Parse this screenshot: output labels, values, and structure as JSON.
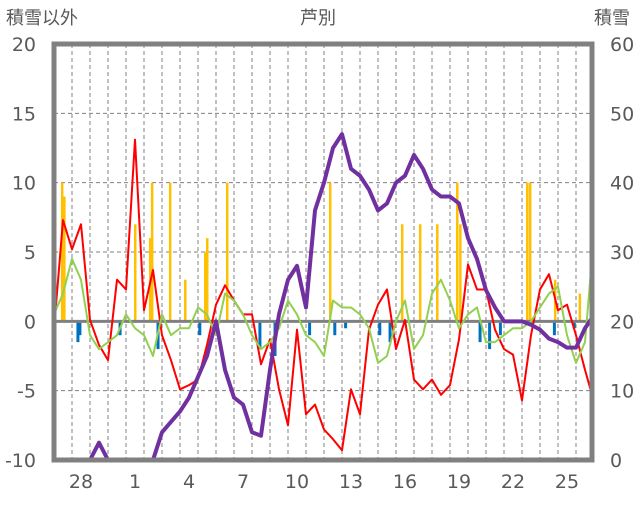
{
  "chart_data": {
    "type": "line",
    "title": "芦別",
    "ylabel_left": "積雪以外",
    "ylabel_right": "積雪",
    "ylim_left": [
      -10,
      20
    ],
    "ylim_right": [
      0,
      60
    ],
    "yticks_left": [
      "20",
      "15",
      "10",
      "5",
      "0",
      "-5",
      "-10"
    ],
    "yticks_right": [
      "60",
      "50",
      "40",
      "30",
      "20",
      "10",
      "0"
    ],
    "xlim_days": [
      0,
      29.9
    ],
    "x_tick_labels": [
      {
        "day": 1.5,
        "label": "28"
      },
      {
        "day": 4.5,
        "label": "1"
      },
      {
        "day": 7.5,
        "label": "4"
      },
      {
        "day": 10.5,
        "label": "7"
      },
      {
        "day": 13.5,
        "label": "10"
      },
      {
        "day": 16.5,
        "label": "13"
      },
      {
        "day": 19.5,
        "label": "16"
      },
      {
        "day": 22.5,
        "label": "19"
      },
      {
        "day": 25.5,
        "label": "22"
      },
      {
        "day": 28.5,
        "label": "25"
      }
    ],
    "grid": true,
    "x_step": 0.5,
    "series": [
      {
        "name": "red",
        "axis": "left",
        "color": "#ff0000",
        "values": [
          -0.6,
          7.3,
          5.2,
          7,
          0.1,
          -1.7,
          -2.8,
          3,
          2.3,
          13.1,
          0.8,
          3.7,
          -1,
          -2.8,
          -4.9,
          -4.6,
          -4.2,
          -1.7,
          1.2,
          2.6,
          1.5,
          0.5,
          0.5,
          -3.1,
          -1.3,
          -4.9,
          -7.5,
          -0.6,
          -6.7,
          -6,
          -7.8,
          -8.5,
          -9.3,
          -4.9,
          -6.7,
          -0.6,
          1.2,
          2.3,
          -2,
          0.1,
          -4.2,
          -4.9,
          -4.2,
          -5.3,
          -4.6,
          -1.3,
          4.1,
          2.3,
          2.3,
          -0.6,
          -2,
          -2.4,
          -5.7,
          -1,
          2.3,
          3.4,
          0.8,
          1.2,
          -1,
          -3.5,
          -5.3
        ]
      },
      {
        "name": "green",
        "axis": "left",
        "color": "#92d050",
        "values": [
          0.5,
          2,
          4.5,
          3,
          -1,
          -2,
          -1.5,
          -1,
          0.5,
          -0.5,
          -1,
          -2.5,
          0.5,
          -1,
          -0.5,
          -0.5,
          1,
          0.5,
          -1,
          2,
          1.5,
          0.5,
          -1,
          -2,
          -1.5,
          -0.5,
          1.5,
          0.5,
          -1,
          -1.5,
          -2.5,
          1.5,
          1,
          1,
          0.5,
          -0.5,
          -3,
          -2.5,
          0,
          1.5,
          -2,
          -1,
          2,
          3,
          1.5,
          -0.5,
          0.5,
          1,
          -1.5,
          -1.5,
          -1,
          -0.5,
          -0.5,
          0,
          1,
          2,
          2.5,
          -1,
          -3,
          -1.5,
          4.5
        ]
      },
      {
        "name": "snow-depth",
        "axis": "right",
        "color": "#7030a0",
        "values": [
          0,
          0,
          0,
          0,
          0,
          2.5,
          0,
          0,
          0,
          0,
          0,
          0,
          4,
          5.5,
          7,
          9,
          12,
          15,
          20,
          13,
          9,
          8,
          4,
          3.5,
          13,
          21,
          26,
          28,
          22,
          36,
          40,
          45,
          47,
          42,
          41,
          39,
          36,
          37,
          40,
          41,
          44,
          42,
          39,
          38,
          38,
          37,
          32,
          29,
          24.5,
          22,
          20,
          20,
          20,
          19.5,
          18.8,
          17.5,
          17,
          16.2,
          16.2,
          19,
          20.5
        ]
      }
    ],
    "bars_snowfall": {
      "color": "#ffc000",
      "axis": "left",
      "points": [
        [
          0.44,
          10
        ],
        [
          0.56,
          9
        ],
        [
          4.5,
          7
        ],
        [
          5.33,
          6
        ],
        [
          5.44,
          10
        ],
        [
          6.44,
          10
        ],
        [
          7.28,
          3
        ],
        [
          8.39,
          5
        ],
        [
          8.5,
          6
        ],
        [
          9.61,
          10
        ],
        [
          15.33,
          10
        ],
        [
          19.33,
          7
        ],
        [
          20.33,
          7
        ],
        [
          21.28,
          7
        ],
        [
          22.39,
          10
        ],
        [
          22.56,
          7
        ],
        [
          26.28,
          10
        ],
        [
          26.44,
          10
        ],
        [
          27.83,
          3
        ],
        [
          29.2,
          2
        ]
      ]
    },
    "bars_negative": {
      "color": "#0070c0",
      "axis": "left",
      "points": [
        [
          1.33,
          -1.5
        ],
        [
          1.44,
          -1
        ],
        [
          3.67,
          -1
        ],
        [
          5.78,
          -2
        ],
        [
          8.1,
          -1
        ],
        [
          11.44,
          -2
        ],
        [
          12.28,
          -2.5
        ],
        [
          14.2,
          -1
        ],
        [
          15.6,
          -1
        ],
        [
          16.2,
          -0.5
        ],
        [
          18.1,
          -1
        ],
        [
          18.67,
          -1.5
        ],
        [
          23.67,
          -1.5
        ],
        [
          24.2,
          -2
        ],
        [
          24.8,
          -1
        ],
        [
          27.8,
          -1
        ],
        [
          28.9,
          -0.5
        ]
      ]
    }
  }
}
